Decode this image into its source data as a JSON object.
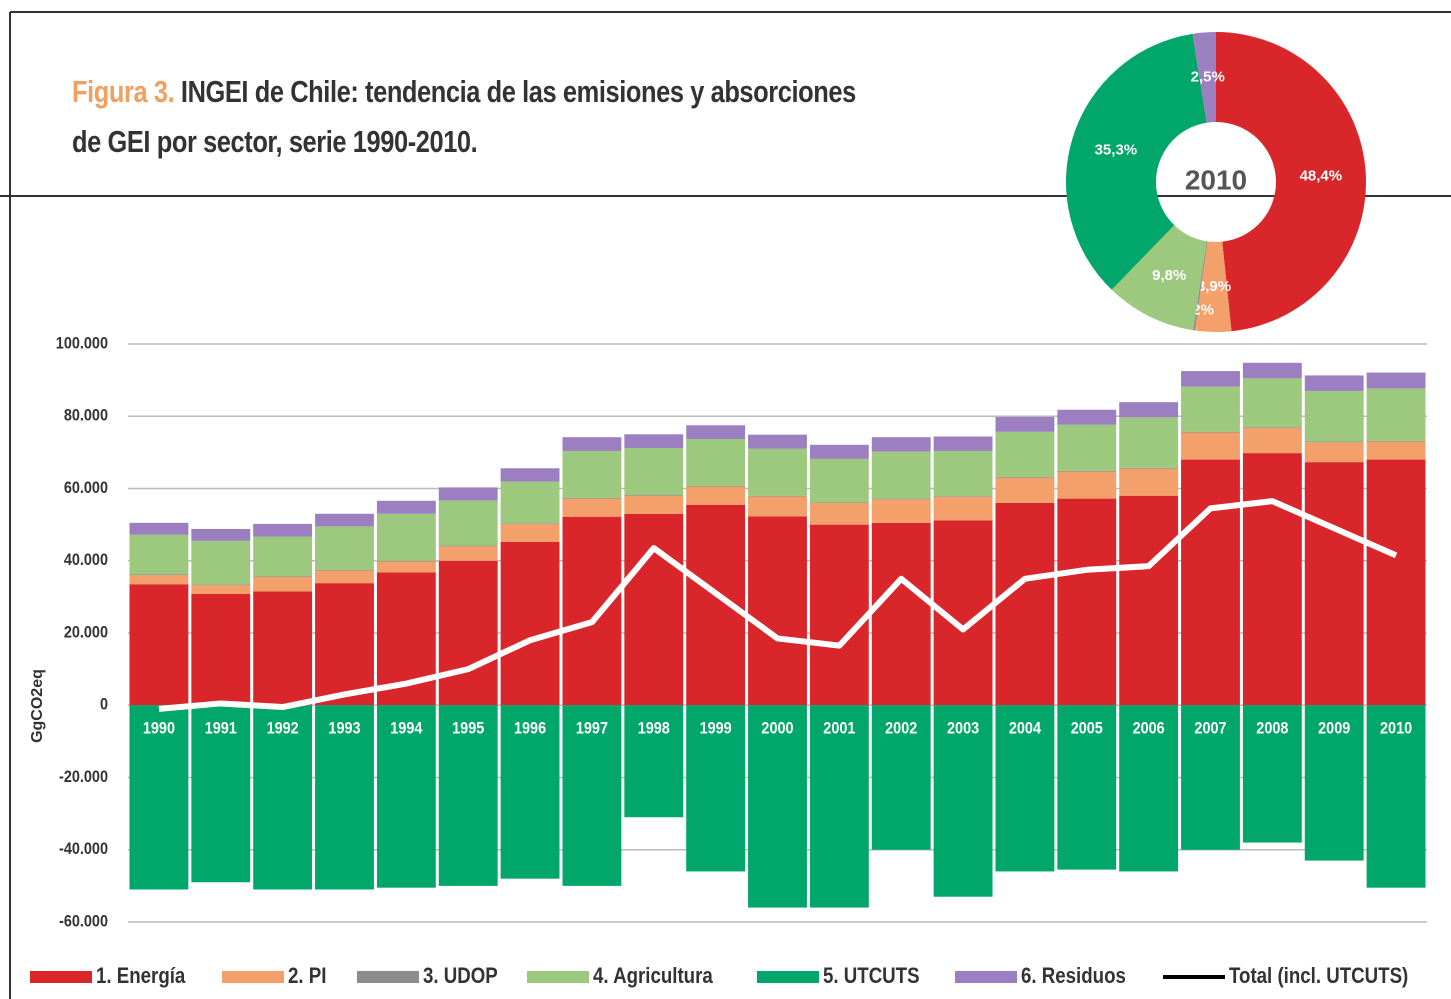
{
  "chart_data": [
    {
      "type": "stacked_bar",
      "figure_label": "Figura 3.",
      "title": [
        "INGEI de Chile: tendencia de las emisiones y absorciones",
        "de GEI por sector, serie 1990-2010."
      ],
      "y_label": "GgCO2eq",
      "categories": [
        "1990",
        "1991",
        "1992",
        "1993",
        "1994",
        "1995",
        "1996",
        "1997",
        "1998",
        "1999",
        "2000",
        "2001",
        "2002",
        "2003",
        "2004",
        "2005",
        "2006",
        "2007",
        "2008",
        "2009",
        "2010"
      ],
      "ylim": [
        -60000,
        100000
      ],
      "yticks": [
        {
          "value": -60000,
          "label": "-60.000"
        },
        {
          "value": -40000,
          "label": "-40.000"
        },
        {
          "value": -20000,
          "label": "-20.000"
        },
        0,
        {
          "value": 20000,
          "label": "20.000"
        },
        {
          "value": 40000,
          "label": "40.000"
        },
        {
          "value": 60000,
          "label": "60.000"
        },
        {
          "value": 80000,
          "label": "80.000"
        },
        {
          "value": 100000,
          "label": "100.000"
        }
      ],
      "grid": true,
      "series": [
        {
          "name": "1. Energía",
          "color": "#d9262b",
          "values": [
            33500,
            30800,
            31500,
            33800,
            36800,
            40000,
            45200,
            52200,
            53000,
            55500,
            52300,
            50000,
            50500,
            51200,
            56000,
            57200,
            58000,
            68000,
            69800,
            67300,
            68000
          ]
        },
        {
          "name": "2. PI",
          "color": "#f4a06a",
          "values": [
            2500,
            2500,
            4000,
            3500,
            3000,
            4000,
            5000,
            5000,
            5000,
            5000,
            5500,
            6000,
            6500,
            6500,
            7000,
            7500,
            7500,
            7500,
            7000,
            5500,
            5000
          ]
        },
        {
          "name": "3. UDOP",
          "color": "#8c8c8c",
          "values": [
            200,
            200,
            200,
            200,
            200,
            200,
            200,
            200,
            200,
            200,
            200,
            200,
            200,
            200,
            200,
            200,
            200,
            200,
            200,
            200,
            200
          ]
        },
        {
          "name": "4. Agricultura",
          "color": "#9cc97e",
          "values": [
            11000,
            12000,
            11000,
            12000,
            13000,
            12500,
            11500,
            13000,
            13000,
            13000,
            13000,
            12000,
            13000,
            12500,
            12500,
            12800,
            14000,
            12500,
            13500,
            14000,
            14500
          ]
        },
        {
          "name": "5. UTCUTS",
          "color": "#00a66a",
          "values": [
            -51000,
            -49000,
            -51000,
            -51000,
            -50500,
            -50000,
            -48000,
            -50000,
            -31000,
            -46000,
            -56000,
            -56000,
            -40000,
            -53000,
            -46000,
            -45500,
            -46000,
            -40000,
            -38000,
            -43000,
            -50500
          ]
        },
        {
          "name": "6. Residuos",
          "color": "#9b7fc0",
          "values": [
            3300,
            3300,
            3500,
            3500,
            3600,
            3600,
            3700,
            3800,
            3800,
            3800,
            3900,
            3900,
            4000,
            4000,
            4100,
            4100,
            4200,
            4300,
            4300,
            4300,
            4400
          ]
        },
        {
          "name": "Total (incl. UTCUTS)",
          "color": "#ffffff",
          "type": "line",
          "values": [
            -1000,
            500,
            -500,
            3000,
            6000,
            10000,
            18000,
            23000,
            43500,
            31000,
            18500,
            16500,
            35000,
            21000,
            35000,
            37500,
            38500,
            54500,
            56500,
            49000,
            41500
          ]
        }
      ]
    },
    {
      "type": "donut",
      "center_label": "2010",
      "categories": [
        "1. Energía",
        "2. PI",
        "3. UDOP",
        "4. Agricultura",
        "5. UTCUTS",
        "6. Residuos"
      ],
      "colors": [
        "#d9262b",
        "#f4a06a",
        "#8c8c8c",
        "#9cc97e",
        "#00a66a",
        "#9b7fc0"
      ],
      "values": [
        48.4,
        3.9,
        0.2,
        9.8,
        35.3,
        2.5
      ],
      "value_labels": [
        "48,4%",
        "3,9%",
        "0,2%",
        "9,8%",
        "35,3%",
        "2,5%"
      ]
    }
  ]
}
